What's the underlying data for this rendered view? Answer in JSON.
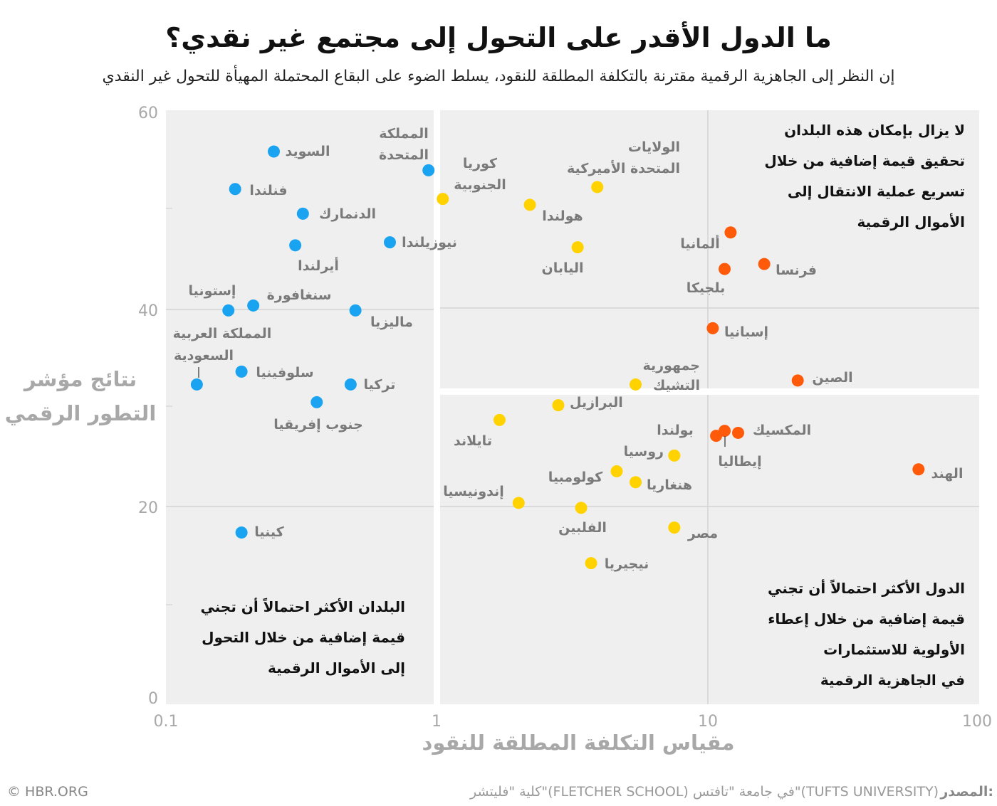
{
  "title": "ما الدول الأقدر على التحول إلى مجتمع غير نقدي؟",
  "subtitle": "إن النظر إلى الجاهزية الرقمية مقترنة بالتكلفة المطلقة للنقود، يسلط الضوء على البقاع المحتملة المهيأة للتحول غير النقدي",
  "footer": {
    "source_label": "المصدر:",
    "source_text": "كلية \"فليتشر\"(FLETCHER SCHOOL)  في جامعة \"تافتس\"(TUFTS UNIVERSITY)",
    "copyright": "© HBR.ORG"
  },
  "chart_data": {
    "type": "scatter",
    "title": "ما الدول الأقدر على التحول إلى مجتمع غير نقدي؟",
    "xlabel": "مقياس التكلفة المطلقة للنقود",
    "ylabel": "نتائج مؤشر التطور الرقمي",
    "x_scale": "log",
    "xlim": [
      0.1,
      100
    ],
    "ylim": [
      0,
      60
    ],
    "x_ticks": [
      "0.1",
      "1",
      "10",
      "100"
    ],
    "y_ticks": [
      "0",
      "20",
      "40",
      "60"
    ],
    "grid": true,
    "colors": {
      "blue": "#1aa3f0",
      "yellow": "#ffd200",
      "orange": "#ff5a0a"
    },
    "quadrant_notes": {
      "top_right": [
        "لا يزال بإمكان هذه البلدان",
        "تحقيق قيمة إضافية من خلال",
        "تسريع عملية الانتقال إلى",
        "الأموال الرقمية"
      ],
      "bottom_right": [
        "الدول الأكثر احتمالاً أن تجني",
        "قيمة إضافية من خلال إعطاء",
        "الأولوية للاستثمارات",
        "في الجاهزية الرقمية"
      ],
      "bottom_left": [
        "البلدان الأكثر احتمالاً أن تجني",
        "قيمة إضافية من خلال التحول",
        "إلى الأموال الرقمية"
      ]
    },
    "points": [
      {
        "name": "السويد",
        "x": 0.25,
        "y": 56.0,
        "group": "blue"
      },
      {
        "name": "فنلندا",
        "x": 0.18,
        "y": 52.2,
        "group": "blue"
      },
      {
        "name": "الدنمارك",
        "x": 0.32,
        "y": 49.7,
        "group": "blue"
      },
      {
        "name": "أيرلندا",
        "x": 0.3,
        "y": 46.5,
        "group": "blue"
      },
      {
        "name": "نيوزيلندا",
        "x": 0.67,
        "y": 46.8,
        "group": "blue"
      },
      {
        "name": "المملكة المتحدة",
        "x": 0.93,
        "y": 54.1,
        "group": "blue"
      },
      {
        "name": "إستونيا",
        "x": 0.17,
        "y": 39.9,
        "group": "blue"
      },
      {
        "name": "سنغافورة",
        "x": 0.21,
        "y": 40.4,
        "group": "blue"
      },
      {
        "name": "ماليزيا",
        "x": 0.5,
        "y": 39.9,
        "group": "blue"
      },
      {
        "name": "المملكة العربية السعودية",
        "x": 0.13,
        "y": 32.4,
        "group": "blue"
      },
      {
        "name": "سلوفينيا",
        "x": 0.19,
        "y": 33.7,
        "group": "blue"
      },
      {
        "name": "تركيا",
        "x": 0.48,
        "y": 32.4,
        "group": "blue"
      },
      {
        "name": "جنوب إفريقيا",
        "x": 0.36,
        "y": 30.6,
        "group": "blue"
      },
      {
        "name": "كينيا",
        "x": 0.19,
        "y": 17.4,
        "group": "blue"
      },
      {
        "name": "كوريا الجنوبية",
        "x": 1.05,
        "y": 51.2,
        "group": "yellow"
      },
      {
        "name": "الولايات المتحدة الأميركية",
        "x": 3.9,
        "y": 52.4,
        "group": "yellow"
      },
      {
        "name": "هولندا",
        "x": 2.2,
        "y": 50.6,
        "group": "yellow"
      },
      {
        "name": "اليابان",
        "x": 3.3,
        "y": 46.3,
        "group": "yellow"
      },
      {
        "name": "جمهورية التشيك",
        "x": 5.4,
        "y": 32.4,
        "group": "yellow"
      },
      {
        "name": "البرازيل",
        "x": 2.8,
        "y": 30.3,
        "group": "yellow"
      },
      {
        "name": "تايلاند",
        "x": 1.7,
        "y": 28.8,
        "group": "yellow"
      },
      {
        "name": "روسيا",
        "x": 7.5,
        "y": 25.2,
        "group": "yellow"
      },
      {
        "name": "كولومبيا",
        "x": 4.6,
        "y": 23.6,
        "group": "yellow"
      },
      {
        "name": "هنغاريا",
        "x": 5.4,
        "y": 22.5,
        "group": "yellow"
      },
      {
        "name": "إندونيسيا",
        "x": 2.0,
        "y": 20.4,
        "group": "yellow"
      },
      {
        "name": "الفلبين",
        "x": 3.4,
        "y": 19.9,
        "group": "yellow"
      },
      {
        "name": "مصر",
        "x": 7.5,
        "y": 17.9,
        "group": "yellow"
      },
      {
        "name": "نيجيريا",
        "x": 3.7,
        "y": 14.3,
        "group": "yellow"
      },
      {
        "name": "ألمانيا",
        "x": 12.1,
        "y": 47.8,
        "group": "orange"
      },
      {
        "name": "بلجيكا",
        "x": 11.5,
        "y": 44.1,
        "group": "orange"
      },
      {
        "name": "فرنسا",
        "x": 16.1,
        "y": 44.6,
        "group": "orange"
      },
      {
        "name": "إسبانيا",
        "x": 10.4,
        "y": 38.1,
        "group": "orange"
      },
      {
        "name": "الصين",
        "x": 21.4,
        "y": 32.8,
        "group": "orange"
      },
      {
        "name": "بولندا",
        "x": 10.7,
        "y": 27.2,
        "group": "orange"
      },
      {
        "name": "إيطاليا",
        "x": 11.5,
        "y": 27.7,
        "group": "orange"
      },
      {
        "name": "المكسيك",
        "x": 12.9,
        "y": 27.5,
        "group": "orange"
      },
      {
        "name": "الهند",
        "x": 59.7,
        "y": 23.8,
        "group": "orange"
      }
    ]
  }
}
